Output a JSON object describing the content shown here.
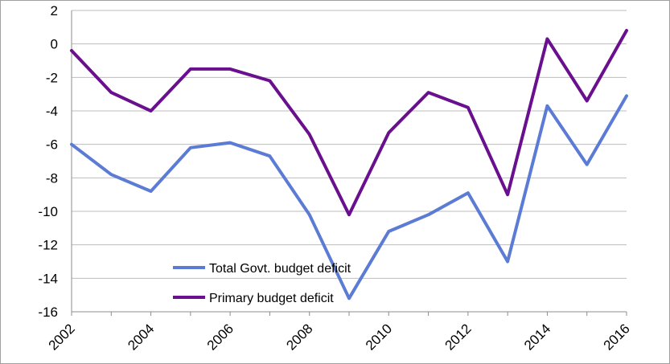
{
  "chart_data": {
    "type": "line",
    "x": [
      2002,
      2003,
      2004,
      2005,
      2006,
      2007,
      2008,
      2009,
      2010,
      2011,
      2012,
      2013,
      2014,
      2015,
      2016
    ],
    "x_tick_labels": [
      "2002",
      "2004",
      "2006",
      "2008",
      "2010",
      "2012",
      "2014",
      "2016"
    ],
    "y_tick_labels": [
      "2",
      "0",
      "-2",
      "-4",
      "-6",
      "-8",
      "-10",
      "-12",
      "-14",
      "-16"
    ],
    "ylim": [
      -16,
      2
    ],
    "grid": "horizontal",
    "legend_position": "bottom-left inside plot",
    "series": [
      {
        "name": "Total Govt. budget deficit",
        "color": "#5b7bd5",
        "values": [
          -6.0,
          -7.8,
          -8.8,
          -6.2,
          -5.9,
          -6.7,
          -10.2,
          -15.2,
          -11.2,
          -10.2,
          -8.9,
          -13.0,
          -3.7,
          -7.2,
          -3.1
        ]
      },
      {
        "name": "Primary budget deficit",
        "color": "#6a0f8e",
        "values": [
          -0.4,
          -2.9,
          -4.0,
          -1.5,
          -1.5,
          -2.2,
          -5.4,
          -10.2,
          -5.3,
          -2.9,
          -3.8,
          -9.0,
          0.3,
          -3.4,
          0.8
        ]
      }
    ]
  }
}
